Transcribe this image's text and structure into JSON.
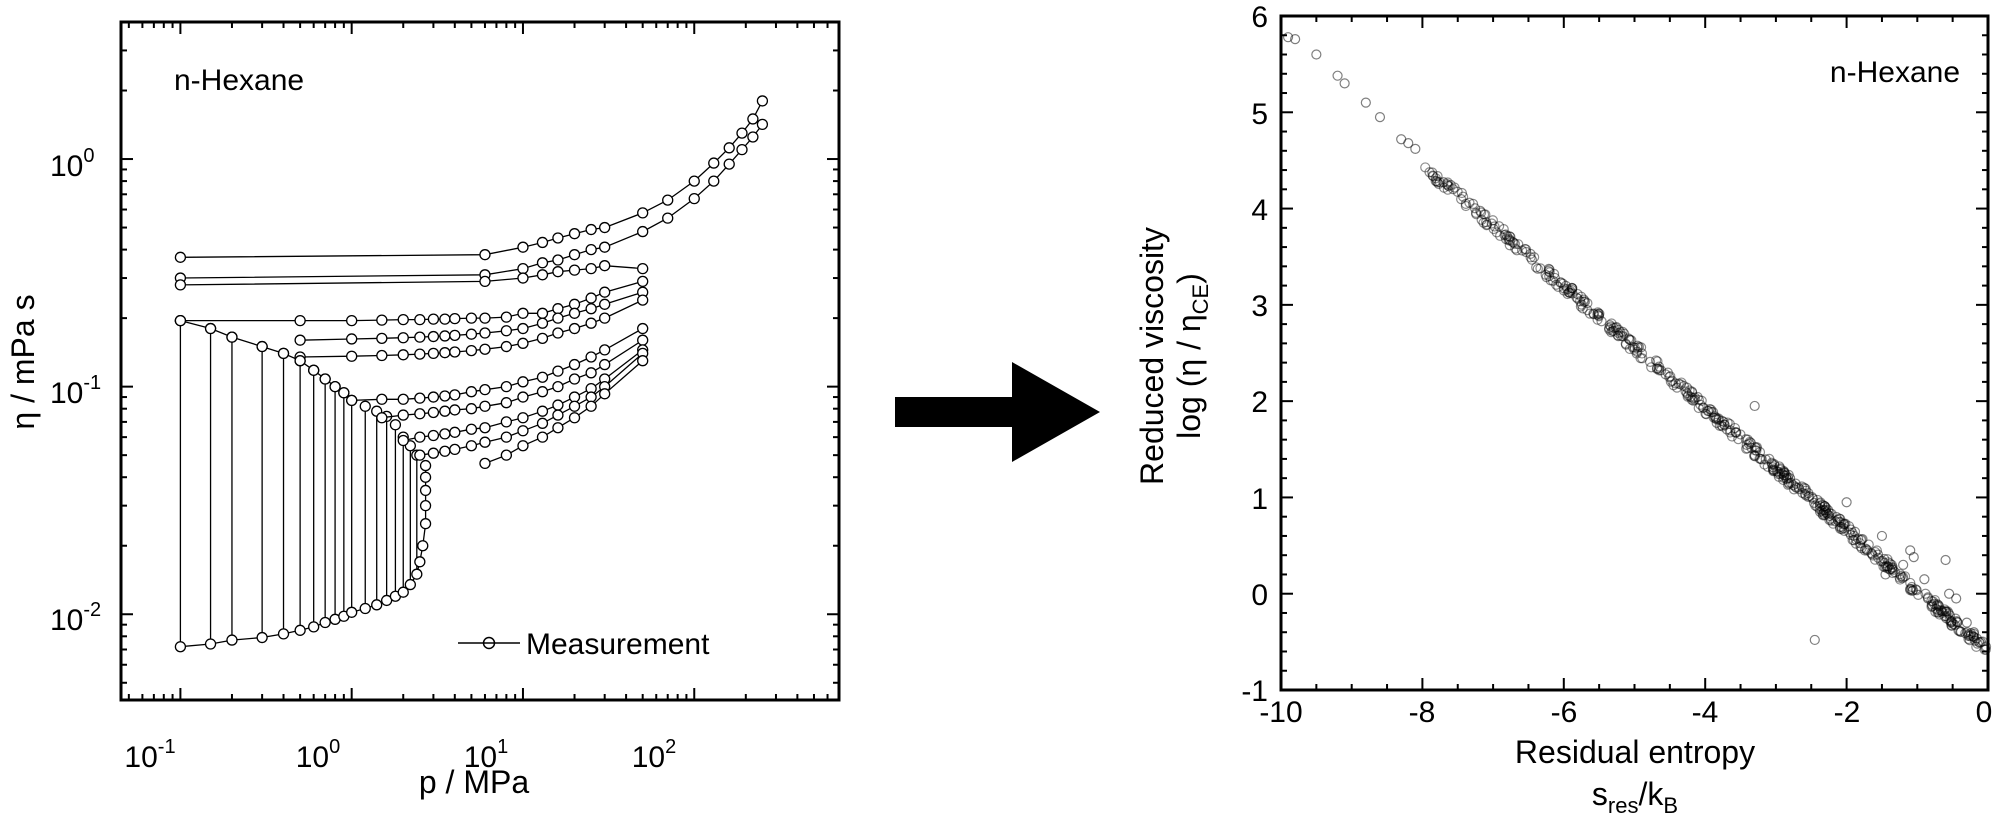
{
  "chart_data": [
    {
      "type": "line",
      "panel": "left",
      "scale": {
        "x": "log",
        "y": "log"
      },
      "annotation": "n-Hexane",
      "xlabel": "p / MPa",
      "ylabel": "η / mPa s",
      "xlim": [
        0.045,
        700
      ],
      "ylim": [
        0.0042,
        4.0
      ],
      "x_ticks": [
        {
          "value": 0.1,
          "base": "10",
          "exp": "-1"
        },
        {
          "value": 1,
          "base": "10",
          "exp": "0"
        },
        {
          "value": 10,
          "base": "10",
          "exp": "1"
        },
        {
          "value": 100,
          "base": "10",
          "exp": "2"
        }
      ],
      "y_ticks": [
        {
          "value": 0.01,
          "base": "10",
          "exp": "-2"
        },
        {
          "value": 0.1,
          "base": "10",
          "exp": "-1"
        },
        {
          "value": 1,
          "base": "10",
          "exp": "0"
        }
      ],
      "legend": {
        "label": "Measurement",
        "position": "bottom-right"
      },
      "series": [
        {
          "x": [
            0.1,
            6,
            10,
            13,
            16,
            20,
            25,
            30,
            50,
            70,
            100,
            130,
            160,
            190,
            220,
            250
          ],
          "y": [
            0.37,
            0.38,
            0.41,
            0.43,
            0.45,
            0.47,
            0.49,
            0.5,
            0.58,
            0.66,
            0.8,
            0.96,
            1.12,
            1.3,
            1.5,
            1.8
          ]
        },
        {
          "x": [
            0.1,
            6,
            10,
            13,
            16,
            20,
            25,
            30,
            50,
            70,
            100,
            130,
            160,
            190,
            220,
            250
          ],
          "y": [
            0.3,
            0.31,
            0.33,
            0.35,
            0.36,
            0.38,
            0.4,
            0.41,
            0.48,
            0.55,
            0.67,
            0.8,
            0.95,
            1.1,
            1.25,
            1.42
          ]
        },
        {
          "x": [
            0.1,
            6,
            10,
            13,
            16,
            20,
            25,
            30,
            50
          ],
          "y": [
            0.28,
            0.29,
            0.3,
            0.31,
            0.32,
            0.325,
            0.33,
            0.34,
            0.33
          ]
        },
        {
          "x": [
            0.1,
            0.5,
            1,
            1.5,
            2,
            2.5,
            3,
            3.5,
            4,
            5,
            6,
            8,
            10,
            13,
            16,
            20,
            25,
            30,
            50
          ],
          "y": [
            0.195,
            0.195,
            0.195,
            0.196,
            0.197,
            0.197,
            0.198,
            0.198,
            0.199,
            0.2,
            0.2,
            0.202,
            0.21,
            0.21,
            0.22,
            0.23,
            0.245,
            0.26,
            0.29
          ]
        },
        {
          "x": [
            0.5,
            1,
            1.5,
            2,
            2.5,
            3,
            3.5,
            4,
            5,
            6,
            8,
            10,
            13,
            16,
            20,
            25,
            30,
            50
          ],
          "y": [
            0.16,
            0.162,
            0.163,
            0.164,
            0.165,
            0.166,
            0.167,
            0.168,
            0.17,
            0.172,
            0.176,
            0.18,
            0.19,
            0.2,
            0.21,
            0.22,
            0.23,
            0.26
          ]
        },
        {
          "x": [
            0.5,
            1,
            1.5,
            2,
            2.5,
            3,
            3.5,
            4,
            5,
            6,
            8,
            10,
            13,
            16,
            20,
            25,
            30,
            50
          ],
          "y": [
            0.135,
            0.136,
            0.137,
            0.138,
            0.139,
            0.14,
            0.141,
            0.142,
            0.144,
            0.146,
            0.15,
            0.155,
            0.163,
            0.172,
            0.18,
            0.19,
            0.2,
            0.24
          ]
        },
        {
          "x": [
            0.1,
            0.15,
            0.2,
            0.3,
            0.4,
            0.5,
            0.6,
            0.7,
            0.8,
            0.9,
            1,
            1.5,
            2,
            2.5,
            3,
            3.5,
            4,
            5,
            6,
            8,
            10,
            13,
            16,
            20,
            25,
            30,
            50
          ],
          "y": [
            0.195,
            0.18,
            0.165,
            0.15,
            0.14,
            0.13,
            0.118,
            0.108,
            0.1,
            0.094,
            0.087,
            0.088,
            0.088,
            0.089,
            0.09,
            0.091,
            0.092,
            0.095,
            0.097,
            0.1,
            0.105,
            0.11,
            0.117,
            0.125,
            0.135,
            0.145,
            0.18
          ]
        },
        {
          "x": [
            1.5,
            2,
            2.5,
            3,
            3.5,
            4,
            5,
            6,
            8,
            10,
            13,
            16,
            20,
            25,
            30,
            50
          ],
          "y": [
            0.073,
            0.075,
            0.076,
            0.077,
            0.078,
            0.079,
            0.08,
            0.082,
            0.085,
            0.09,
            0.095,
            0.1,
            0.108,
            0.115,
            0.125,
            0.16
          ]
        },
        {
          "x": [
            2,
            2.5,
            3,
            3.5,
            4,
            5,
            6,
            8,
            10,
            13,
            16,
            20,
            25,
            30,
            50
          ],
          "y": [
            0.058,
            0.06,
            0.061,
            0.062,
            0.063,
            0.065,
            0.066,
            0.07,
            0.073,
            0.078,
            0.083,
            0.09,
            0.098,
            0.108,
            0.145
          ]
        },
        {
          "x": [
            2.5,
            3,
            3.5,
            4,
            5,
            6,
            8,
            10,
            13,
            16,
            20,
            25,
            30,
            50
          ],
          "y": [
            0.05,
            0.051,
            0.052,
            0.053,
            0.055,
            0.057,
            0.06,
            0.064,
            0.069,
            0.075,
            0.082,
            0.09,
            0.1,
            0.14
          ]
        },
        {
          "x": [
            0.1,
            0.15,
            0.2,
            0.3,
            0.4,
            0.5,
            0.6,
            0.7,
            0.8,
            0.9,
            1,
            1.2,
            1.4,
            1.6,
            1.8,
            2,
            2.2,
            2.4,
            2.5,
            2.6,
            2.7,
            2.7,
            2.7,
            2.7,
            2.7
          ],
          "y": [
            0.0072,
            0.0074,
            0.0077,
            0.0079,
            0.0082,
            0.0085,
            0.0088,
            0.0092,
            0.0095,
            0.0098,
            0.0102,
            0.0106,
            0.011,
            0.0115,
            0.012,
            0.0125,
            0.0135,
            0.015,
            0.017,
            0.02,
            0.025,
            0.03,
            0.035,
            0.04,
            0.045
          ]
        },
        {
          "x": [
            6,
            8,
            10,
            13,
            16,
            20,
            25,
            30,
            50
          ],
          "y": [
            0.046,
            0.05,
            0.055,
            0.06,
            0.066,
            0.073,
            0.082,
            0.093,
            0.13
          ]
        }
      ],
      "tie_lines": [
        {
          "x": 0.1,
          "y_low": 0.0072,
          "y_high": 0.195
        },
        {
          "x": 0.15,
          "y_low": 0.0074,
          "y_high": 0.18
        },
        {
          "x": 0.2,
          "y_low": 0.0077,
          "y_high": 0.165
        },
        {
          "x": 0.3,
          "y_low": 0.0079,
          "y_high": 0.15
        },
        {
          "x": 0.4,
          "y_low": 0.0082,
          "y_high": 0.14
        },
        {
          "x": 0.5,
          "y_low": 0.0085,
          "y_high": 0.13
        },
        {
          "x": 0.6,
          "y_low": 0.0088,
          "y_high": 0.118
        },
        {
          "x": 0.7,
          "y_low": 0.0092,
          "y_high": 0.108
        },
        {
          "x": 0.8,
          "y_low": 0.0095,
          "y_high": 0.1
        },
        {
          "x": 0.9,
          "y_low": 0.0098,
          "y_high": 0.094
        },
        {
          "x": 1,
          "y_low": 0.0102,
          "y_high": 0.087
        },
        {
          "x": 1.2,
          "y_low": 0.0106,
          "y_high": 0.082
        },
        {
          "x": 1.4,
          "y_low": 0.011,
          "y_high": 0.078
        },
        {
          "x": 1.6,
          "y_low": 0.0115,
          "y_high": 0.074
        },
        {
          "x": 1.8,
          "y_low": 0.012,
          "y_high": 0.068
        },
        {
          "x": 2,
          "y_low": 0.0125,
          "y_high": 0.06
        },
        {
          "x": 2.2,
          "y_low": 0.0135,
          "y_high": 0.055
        },
        {
          "x": 2.4,
          "y_low": 0.015,
          "y_high": 0.05
        }
      ]
    },
    {
      "type": "scatter",
      "panel": "right",
      "annotation": "n-Hexane",
      "xlabel": {
        "line1": "Residual entropy",
        "line2_main": "s",
        "line2_sub": "res",
        "line2_mid": "/k",
        "line2_sub2": "B"
      },
      "ylabel": {
        "line1": "Reduced viscosity",
        "line2_main": "log (η / η",
        "line2_sub": "CE",
        "line2_end": ")"
      },
      "xlim": [
        -10,
        0
      ],
      "ylim": [
        -1,
        6
      ],
      "x_ticks": [
        "-10",
        "-8",
        "-6",
        "-4",
        "-2",
        "0"
      ],
      "y_ticks": [
        "-1",
        "0",
        "1",
        "2",
        "3",
        "4",
        "5",
        "6"
      ],
      "trend": {
        "slope": -0.632,
        "intercept": -0.6
      },
      "points": [
        {
          "x": -9.9,
          "y": 5.78
        },
        {
          "x": -9.8,
          "y": 5.76
        },
        {
          "x": -9.5,
          "y": 5.6
        },
        {
          "x": -9.2,
          "y": 5.38
        },
        {
          "x": -9.1,
          "y": 5.3
        },
        {
          "x": -8.8,
          "y": 5.1
        },
        {
          "x": -8.6,
          "y": 4.95
        },
        {
          "x": -8.3,
          "y": 4.72
        },
        {
          "x": -8.2,
          "y": 4.68
        },
        {
          "x": -8.1,
          "y": 4.62
        },
        {
          "x": -2.45,
          "y": -0.48
        },
        {
          "x": -1.45,
          "y": 0.2
        },
        {
          "x": -1.1,
          "y": 0.45
        },
        {
          "x": -1.05,
          "y": 0.38
        },
        {
          "x": -0.6,
          "y": 0.35
        },
        {
          "x": -0.55,
          "y": 0.0
        },
        {
          "x": -0.45,
          "y": -0.05
        },
        {
          "x": -0.7,
          "y": -0.12
        },
        {
          "x": -0.85,
          "y": -0.05
        },
        {
          "x": -2.8,
          "y": 1.2
        },
        {
          "x": -2.0,
          "y": 0.95
        },
        {
          "x": -1.5,
          "y": 0.6
        },
        {
          "x": -3.3,
          "y": 1.95
        },
        {
          "x": -0.9,
          "y": 0.15
        },
        {
          "x": -1.2,
          "y": 0.3
        },
        {
          "x": -0.3,
          "y": -0.3
        },
        {
          "x": -0.2,
          "y": -0.4
        },
        {
          "x": -0.1,
          "y": -0.5
        }
      ]
    }
  ]
}
